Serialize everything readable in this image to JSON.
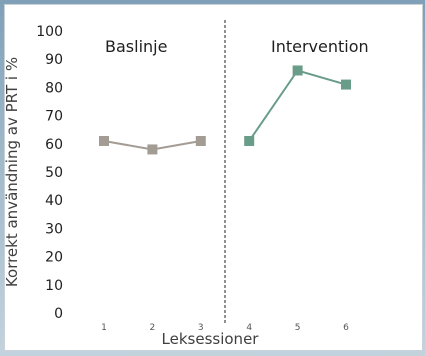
{
  "chart_data": {
    "type": "line",
    "xlabel": "Leksessioner",
    "ylabel": "Korrekt användning av PRT i %",
    "ylim": [
      0,
      100
    ],
    "yticks": [
      0,
      10,
      20,
      30,
      40,
      50,
      60,
      70,
      80,
      90,
      100
    ],
    "xticks": [
      1,
      2,
      3,
      4,
      5,
      6
    ],
    "phase_change_after": 3.5,
    "grid": false,
    "phases": [
      {
        "label": "Baslinje",
        "color": "#a39c95",
        "x": [
          1,
          2,
          3
        ],
        "values": [
          61,
          58,
          61
        ]
      },
      {
        "label": "Intervention",
        "color": "#6a9c8a",
        "x": [
          4,
          5,
          6
        ],
        "values": [
          61,
          86,
          81
        ]
      }
    ]
  }
}
